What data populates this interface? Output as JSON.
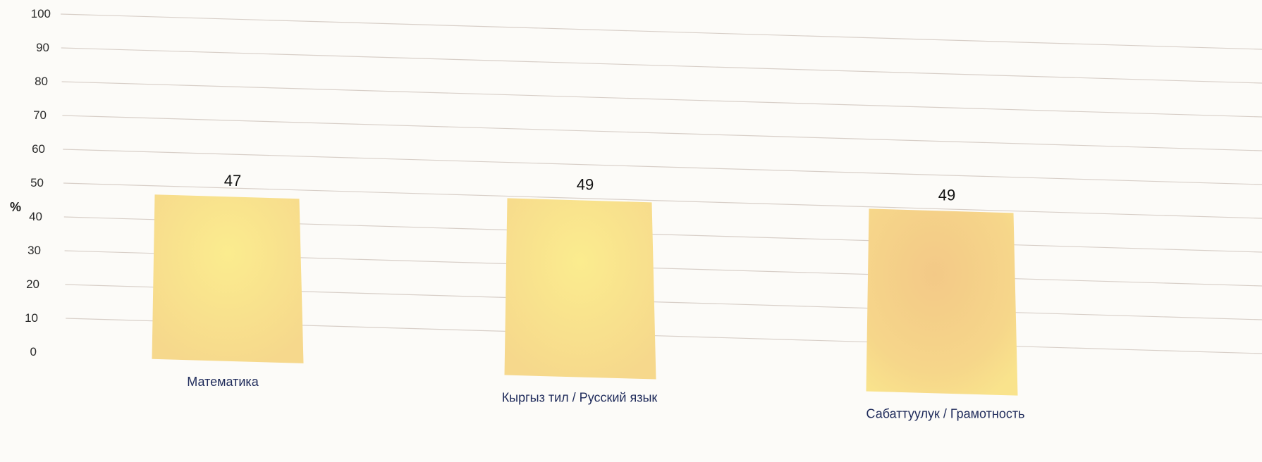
{
  "chart_data": {
    "type": "bar",
    "title": "",
    "xlabel": "",
    "ylabel": "%",
    "ylim": [
      0,
      100
    ],
    "yticks": [
      0,
      10,
      20,
      30,
      40,
      50,
      60,
      70,
      80,
      90,
      100
    ],
    "grid": true,
    "categories": [
      "Математика",
      "Кыргыз тил / Русский язык",
      "Сабаттуулук / Грамотность"
    ],
    "values": [
      47,
      49,
      49
    ],
    "data_labels": [
      "47",
      "49",
      "49"
    ],
    "colors": {
      "bar": "#f8dd8c",
      "bar_highlight": "#fbe88a",
      "bar_warm": "#f5cf88"
    }
  }
}
